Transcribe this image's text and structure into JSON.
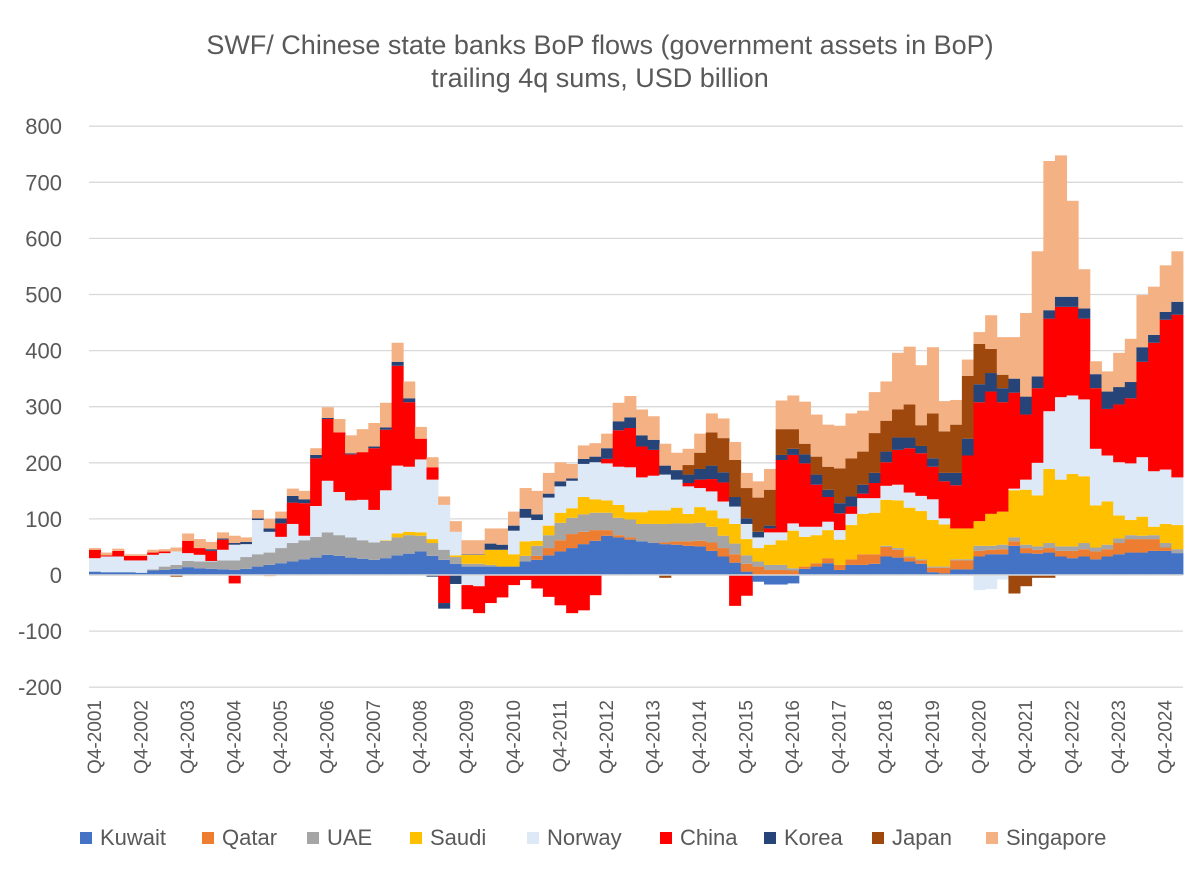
{
  "chart_data": {
    "type": "bar",
    "stacked": true,
    "title": "SWF/ Chinese state banks BoP flows (government assets in BoP)",
    "subtitle": "trailing 4q sums, USD billion",
    "xlabel": "",
    "ylabel": "",
    "ylim": [
      -200,
      800
    ],
    "yticks": [
      "800",
      "700",
      "600",
      "500",
      "400",
      "300",
      "200",
      "100",
      "0",
      "-100",
      "-200"
    ],
    "x_tick_labels": [
      "Q4-2001",
      "Q4-2002",
      "Q4-2003",
      "Q4-2004",
      "Q4-2005",
      "Q4-2006",
      "Q4-2007",
      "Q4-2008",
      "Q4-2009",
      "Q4-2010",
      "Q4-2011",
      "Q4-2012",
      "Q4-2013",
      "Q4-2014",
      "Q4-2015",
      "Q4-2016",
      "Q4-2017",
      "Q4-2018",
      "Q4-2019",
      "Q4-2020",
      "Q4-2021",
      "Q4-2022",
      "Q4-2023",
      "Q4-2024"
    ],
    "grid": true,
    "legend_position": "bottom",
    "series": [
      {
        "name": "Kuwait",
        "color": "#4472C4",
        "values": [
          6,
          5,
          5,
          5,
          4,
          8,
          9,
          11,
          14,
          12,
          11,
          10,
          9,
          11,
          15,
          18,
          21,
          24,
          28,
          31,
          36,
          34,
          31,
          29,
          27,
          30,
          35,
          38,
          42,
          34,
          27,
          20,
          15,
          15,
          15,
          15,
          15,
          24,
          27,
          35,
          42,
          48,
          55,
          61,
          70,
          67,
          63,
          60,
          57,
          55,
          54,
          52,
          51,
          43,
          33,
          22,
          6,
          -12,
          -17,
          -17,
          -15,
          11,
          15,
          21,
          9,
          18,
          18,
          20,
          33,
          31,
          24,
          20,
          5,
          3,
          10,
          10,
          33,
          37,
          37,
          52,
          39,
          38,
          40,
          33,
          30,
          33,
          28,
          33,
          37,
          40,
          40,
          43,
          43,
          39
        ]
      },
      {
        "name": "Qatar",
        "color": "#ED7D31",
        "values": [
          0,
          0,
          0,
          0,
          0,
          0,
          0,
          0,
          0,
          0,
          0,
          0,
          0,
          0,
          0,
          -2,
          0,
          0,
          0,
          0,
          0,
          0,
          0,
          0,
          0,
          0,
          0,
          0,
          0,
          0,
          0,
          0,
          0,
          0,
          0,
          0,
          0,
          0,
          7,
          13,
          20,
          25,
          22,
          19,
          10,
          4,
          4,
          0,
          0,
          3,
          6,
          8,
          10,
          15,
          15,
          15,
          14,
          15,
          9,
          9,
          8,
          4,
          6,
          9,
          9,
          10,
          19,
          17,
          17,
          14,
          7,
          6,
          8,
          10,
          16,
          16,
          10,
          8,
          9,
          8,
          9,
          7,
          8,
          10,
          13,
          13,
          14,
          13,
          20,
          24,
          24,
          21,
          6,
          0
        ]
      },
      {
        "name": "UAE",
        "color": "#A5A5A5",
        "values": [
          0,
          0,
          0,
          0,
          0,
          2,
          6,
          7,
          11,
          12,
          13,
          16,
          17,
          21,
          22,
          22,
          27,
          33,
          34,
          37,
          40,
          37,
          36,
          33,
          31,
          31,
          32,
          33,
          28,
          23,
          18,
          12,
          5,
          5,
          3,
          0,
          0,
          10,
          18,
          23,
          31,
          29,
          31,
          31,
          31,
          31,
          32,
          31,
          34,
          33,
          32,
          32,
          32,
          28,
          22,
          19,
          15,
          9,
          9,
          9,
          4,
          0,
          0,
          0,
          0,
          0,
          0,
          0,
          2,
          3,
          2,
          2,
          2,
          2,
          2,
          2,
          9,
          7,
          8,
          7,
          6,
          6,
          9,
          8,
          8,
          11,
          7,
          8,
          8,
          7,
          6,
          7,
          8,
          7
        ]
      },
      {
        "name": "Saudi",
        "color": "#FFC000",
        "values": [
          0,
          0,
          0,
          0,
          0,
          0,
          0,
          0,
          0,
          0,
          0,
          0,
          0,
          0,
          0,
          0,
          0,
          0,
          0,
          0,
          0,
          0,
          0,
          0,
          0,
          1,
          7,
          6,
          6,
          7,
          0,
          3,
          16,
          16,
          27,
          30,
          22,
          26,
          9,
          17,
          18,
          17,
          31,
          24,
          22,
          23,
          13,
          21,
          24,
          24,
          28,
          17,
          28,
          29,
          31,
          35,
          29,
          24,
          36,
          44,
          67,
          53,
          50,
          50,
          45,
          61,
          72,
          74,
          82,
          85,
          87,
          86,
          83,
          75,
          55,
          55,
          44,
          57,
          59,
          84,
          98,
          91,
          132,
          119,
          129,
          119,
          75,
          77,
          41,
          27,
          34,
          15,
          34,
          43
        ]
      },
      {
        "name": "Norway",
        "color": "#DDE9F6",
        "values": [
          24,
          28,
          28,
          21,
          22,
          26,
          24,
          24,
          14,
          12,
          1,
          19,
          28,
          23,
          61,
          37,
          20,
          34,
          8,
          55,
          92,
          77,
          66,
          72,
          58,
          89,
          121,
          116,
          130,
          106,
          80,
          42,
          -18,
          -20,
          0,
          0,
          42,
          42,
          37,
          50,
          47,
          49,
          59,
          66,
          66,
          68,
          80,
          62,
          62,
          64,
          50,
          49,
          34,
          34,
          30,
          31,
          27,
          19,
          22,
          14,
          13,
          18,
          15,
          15,
          17,
          20,
          28,
          26,
          25,
          28,
          27,
          27,
          37,
          11,
          0,
          0,
          -27,
          -25,
          -8,
          3,
          18,
          58,
          103,
          147,
          140,
          137,
          101,
          82,
          95,
          101,
          106,
          99,
          97,
          85
        ]
      },
      {
        "name": "China",
        "color": "#FF0000",
        "values": [
          15,
          2,
          10,
          8,
          8,
          4,
          3,
          0,
          22,
          12,
          18,
          18,
          -15,
          0,
          0,
          0,
          24,
          38,
          58,
          85,
          110,
          106,
          82,
          85,
          110,
          108,
          178,
          115,
          37,
          22,
          -50,
          0,
          -43,
          -48,
          -50,
          -40,
          -18,
          -9,
          -24,
          -39,
          -54,
          -68,
          -63,
          -36,
          8,
          65,
          70,
          55,
          46,
          0,
          0,
          6,
          15,
          22,
          34,
          -55,
          -37,
          0,
          7,
          129,
          122,
          113,
          75,
          44,
          30,
          13,
          8,
          27,
          42,
          62,
          79,
          76,
          58,
          66,
          77,
          130,
          212,
          218,
          195,
          171,
          116,
          133,
          165,
          161,
          158,
          144,
          108,
          83,
          103,
          116,
          170,
          229,
          267,
          290
        ]
      },
      {
        "name": "Korea",
        "color": "#264478",
        "values": [
          0,
          0,
          0,
          0,
          0,
          0,
          0,
          0,
          0,
          0,
          3,
          2,
          3,
          4,
          3,
          6,
          9,
          12,
          7,
          6,
          2,
          0,
          2,
          0,
          3,
          4,
          7,
          7,
          0,
          -3,
          -10,
          -16,
          1,
          1,
          11,
          9,
          9,
          16,
          10,
          7,
          9,
          4,
          9,
          10,
          19,
          16,
          19,
          20,
          18,
          16,
          17,
          15,
          19,
          24,
          18,
          17,
          10,
          10,
          5,
          9,
          11,
          16,
          18,
          13,
          18,
          18,
          16,
          18,
          19,
          22,
          19,
          13,
          15,
          15,
          22,
          30,
          32,
          33,
          25,
          25,
          32,
          21,
          15,
          18,
          18,
          18,
          25,
          31,
          31,
          29,
          26,
          14,
          14,
          23
        ]
      },
      {
        "name": "Japan",
        "color": "#9E480E",
        "values": [
          0,
          0,
          0,
          0,
          0,
          0,
          0,
          -3,
          0,
          0,
          0,
          0,
          0,
          0,
          0,
          0,
          0,
          0,
          0,
          0,
          0,
          0,
          0,
          0,
          0,
          0,
          0,
          0,
          0,
          0,
          0,
          0,
          0,
          0,
          0,
          0,
          0,
          0,
          0,
          0,
          0,
          0,
          0,
          0,
          0,
          0,
          0,
          0,
          0,
          -5,
          0,
          17,
          29,
          59,
          61,
          66,
          54,
          61,
          64,
          46,
          35,
          19,
          32,
          41,
          62,
          68,
          59,
          71,
          55,
          50,
          59,
          37,
          80,
          74,
          86,
          112,
          72,
          43,
          24,
          -33,
          -20,
          -5,
          -5,
          0,
          0,
          0,
          0,
          0,
          0,
          0,
          0,
          0,
          0,
          0
        ]
      },
      {
        "name": "Singapore",
        "color": "#F4B183",
        "values": [
          3,
          5,
          4,
          3,
          3,
          5,
          4,
          7,
          13,
          16,
          13,
          11,
          13,
          8,
          15,
          17,
          12,
          13,
          15,
          12,
          19,
          24,
          32,
          41,
          42,
          44,
          34,
          30,
          21,
          18,
          15,
          19,
          25,
          25,
          27,
          29,
          25,
          37,
          42,
          37,
          34,
          26,
          24,
          24,
          26,
          33,
          38,
          46,
          42,
          39,
          31,
          29,
          34,
          34,
          35,
          32,
          27,
          29,
          37,
          51,
          60,
          75,
          75,
          75,
          76,
          80,
          73,
          73,
          70,
          101,
          103,
          107,
          118,
          54,
          44,
          29,
          21,
          60,
          67,
          74,
          149,
          223,
          266,
          252,
          171,
          70,
          23,
          36,
          61,
          77,
          93,
          86,
          83,
          90
        ]
      }
    ]
  }
}
